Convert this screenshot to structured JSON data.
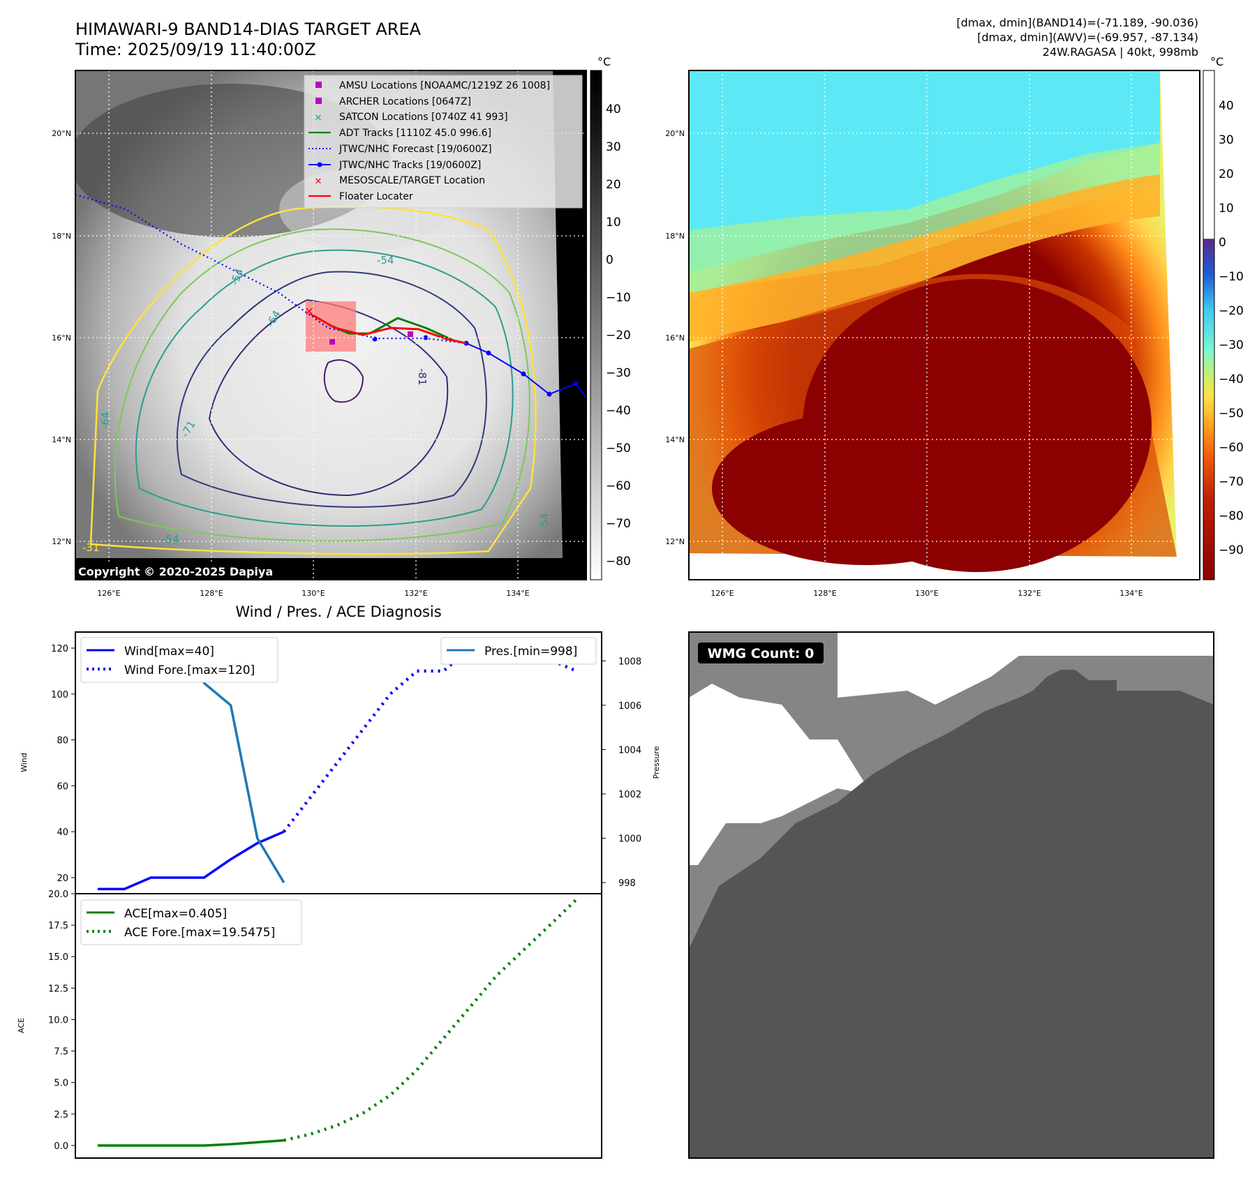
{
  "header": {
    "title": "HIMAWARI-9 BAND14-DIAS TARGET AREA",
    "time": "Time: 2025/09/19 11:40:00Z",
    "stats_band14": "[dmax, dmin](BAND14)=(-71.189, -90.036)",
    "stats_awv": "[dmax, dmin](AWV)=(-69.957, -87.134)",
    "storm_info": "24W.RAGASA | 40kt, 998mb"
  },
  "map": {
    "lon_ticks": [
      "126°E",
      "128°E",
      "130°E",
      "132°E",
      "134°E"
    ],
    "lat_ticks": [
      "12°N",
      "14°N",
      "16°N",
      "18°N",
      "20°N"
    ],
    "copyright": "Copyright © 2020-2025 Dapiya",
    "contour_labels": [
      "-54",
      "-64",
      "-71",
      "-81",
      "-31",
      "-54",
      "-54",
      "-64",
      "-54"
    ],
    "legend": [
      {
        "label": "AMSU Locations [NOAAMC/1219Z 26 1008]",
        "color": "#c000c0",
        "marker": "square"
      },
      {
        "label": "ARCHER Locations [0647Z]",
        "color": "#c000c0",
        "marker": "square"
      },
      {
        "label": "SATCON Locations [0740Z 41 993]",
        "color": "#00b0b0",
        "marker": "x"
      },
      {
        "label": "ADT Tracks [1110Z 45.0 996.6]",
        "color": "#008000",
        "marker": "line"
      },
      {
        "label": "JTWC/NHC Forecast [19/0600Z]",
        "color": "#0000ff",
        "marker": "dotted"
      },
      {
        "label": "JTWC/NHC Tracks [19/0600Z]",
        "color": "#0000ff",
        "marker": "line-dot"
      },
      {
        "label": "MESOSCALE/TARGET Location",
        "color": "#ff0000",
        "marker": "x"
      },
      {
        "label": "Floater Locater",
        "color": "#ff0000",
        "marker": "line"
      }
    ]
  },
  "colorbars": {
    "unit": "°C",
    "left_ticks": [
      "40",
      "30",
      "20",
      "10",
      "0",
      "−10",
      "−20",
      "−30",
      "−40",
      "−50",
      "−60",
      "−70",
      "−80"
    ],
    "right_ticks": [
      "40",
      "30",
      "20",
      "10",
      "0",
      "−10",
      "−20",
      "−30",
      "−40",
      "−50",
      "−60",
      "−70",
      "−80",
      "−90"
    ]
  },
  "wmg": {
    "label": "WMG Count: 0"
  },
  "chart_data": [
    {
      "type": "line",
      "title": "Wind / Pres. / ACE Diagnosis",
      "ylabel": "Wind",
      "ylim": [
        13,
        127
      ],
      "y_ticks": [
        20,
        40,
        60,
        80,
        100,
        120
      ],
      "y2label": "Pressure",
      "y2lim": [
        997.5,
        1009.3
      ],
      "y2_ticks": [
        998,
        1000,
        1002,
        1004,
        1006,
        1008
      ],
      "legend_left": [
        "Wind[max=40]",
        "Wind Fore.[max=120]"
      ],
      "legend_right": [
        "Pres.[min=998]"
      ],
      "series": [
        {
          "name": "Wind[max=40]",
          "axis": "left",
          "style": "solid",
          "color": "#0000ff",
          "points": [
            [
              0,
              15
            ],
            [
              1,
              15
            ],
            [
              2,
              20
            ],
            [
              3,
              20
            ],
            [
              4,
              20
            ],
            [
              5,
              28
            ],
            [
              6,
              35
            ],
            [
              7,
              40
            ]
          ]
        },
        {
          "name": "Wind Fore.[max=120]",
          "axis": "left",
          "style": "dotted",
          "color": "#0000ff",
          "points": [
            [
              7,
              40
            ],
            [
              8,
              55
            ],
            [
              9,
              70
            ],
            [
              10,
              85
            ],
            [
              11,
              100
            ],
            [
              12,
              110
            ],
            [
              13,
              110
            ],
            [
              14,
              120
            ],
            [
              15,
              120
            ],
            [
              16,
              115
            ],
            [
              17,
              115
            ],
            [
              18,
              110
            ]
          ]
        },
        {
          "name": "Pres.[min=998]",
          "axis": "right",
          "style": "solid",
          "color": "#1f77b4",
          "points": [
            [
              0,
              1009
            ],
            [
              0.4,
              1008
            ],
            [
              0.8,
              1008
            ],
            [
              1.6,
              1008
            ],
            [
              2.4,
              1008.5
            ],
            [
              3.2,
              1008.5
            ],
            [
              4,
              1007
            ],
            [
              5,
              1006
            ],
            [
              6,
              1000
            ],
            [
              7,
              998
            ]
          ]
        }
      ]
    },
    {
      "type": "line",
      "ylabel": "ACE",
      "ylim": [
        -1,
        20
      ],
      "y_ticks": [
        "0.0",
        "2.5",
        "5.0",
        "7.5",
        "10.0",
        "12.5",
        "15.0",
        "17.5",
        "20.0"
      ],
      "legend": [
        "ACE[max=0.405]",
        "ACE Fore.[max=19.5475]"
      ],
      "series": [
        {
          "name": "ACE[max=0.405]",
          "style": "solid",
          "color": "#008000",
          "points": [
            [
              0,
              0
            ],
            [
              1,
              0
            ],
            [
              2,
              0
            ],
            [
              3,
              0
            ],
            [
              4,
              0
            ],
            [
              5,
              0.1
            ],
            [
              6,
              0.25
            ],
            [
              7,
              0.405
            ]
          ]
        },
        {
          "name": "ACE Fore.[max=19.5475]",
          "style": "dotted",
          "color": "#008000",
          "points": [
            [
              7,
              0.405
            ],
            [
              8,
              0.9
            ],
            [
              9,
              1.6
            ],
            [
              10,
              2.6
            ],
            [
              11,
              4.0
            ],
            [
              12,
              6.0
            ],
            [
              13,
              8.5
            ],
            [
              14,
              11.0
            ],
            [
              15,
              13.5
            ],
            [
              16,
              15.5
            ],
            [
              17,
              17.5
            ],
            [
              18,
              19.5475
            ]
          ]
        }
      ]
    }
  ]
}
